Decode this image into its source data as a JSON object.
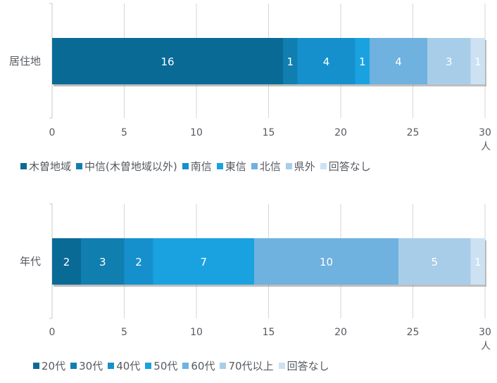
{
  "chart_data": [
    {
      "type": "bar",
      "orientation": "horizontal",
      "stacked": true,
      "categories": [
        "居住地"
      ],
      "xlim": [
        0,
        30
      ],
      "xticks": [
        "0",
        "5",
        "10",
        "15",
        "20",
        "25",
        "30"
      ],
      "xunit": "人",
      "grid": true,
      "legend_position": "bottom",
      "series": [
        {
          "name": "木曽地域",
          "values": [
            16
          ],
          "color": "#0a6a96"
        },
        {
          "name": "中信(木曽地域以外)",
          "values": [
            1
          ],
          "color": "#117eb0"
        },
        {
          "name": "南信",
          "values": [
            4
          ],
          "color": "#1590cc"
        },
        {
          "name": "東信",
          "values": [
            1
          ],
          "color": "#1aa2e0"
        },
        {
          "name": "北信",
          "values": [
            4
          ],
          "color": "#6fb1df"
        },
        {
          "name": "県外",
          "values": [
            3
          ],
          "color": "#a8cde9"
        },
        {
          "name": "回答なし",
          "values": [
            1
          ],
          "color": "#cce2f3"
        }
      ]
    },
    {
      "type": "bar",
      "orientation": "horizontal",
      "stacked": true,
      "categories": [
        "年代"
      ],
      "xlim": [
        0,
        30
      ],
      "xticks": [
        "0",
        "5",
        "10",
        "15",
        "20",
        "25",
        "30"
      ],
      "xunit": "人",
      "grid": true,
      "legend_position": "bottom",
      "series": [
        {
          "name": "20代",
          "values": [
            2
          ],
          "color": "#0a6a96"
        },
        {
          "name": "30代",
          "values": [
            3
          ],
          "color": "#117eb0"
        },
        {
          "name": "40代",
          "values": [
            2
          ],
          "color": "#1590cc"
        },
        {
          "name": "50代",
          "values": [
            7
          ],
          "color": "#1aa2e0"
        },
        {
          "name": "60代",
          "values": [
            10
          ],
          "color": "#6fb1df"
        },
        {
          "name": "70代以上",
          "values": [
            5
          ],
          "color": "#a8cde9"
        },
        {
          "name": "回答なし",
          "values": [
            1
          ],
          "color": "#cce2f3"
        }
      ]
    }
  ]
}
